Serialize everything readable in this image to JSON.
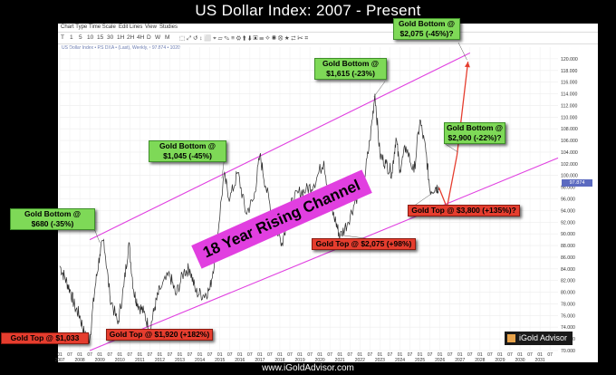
{
  "page": {
    "title": "US Dollar Index: 2007 - Present",
    "footer": "www.iGoldAdvisor.com",
    "logo_text": "iGold Advisor",
    "banner": "18 Year Rising Channel",
    "legend": "US Dollar Index • RS DXA • (Last), Weekly, • 97.874 • 1020"
  },
  "menubar": [
    "Chart Type",
    "Time Scale",
    "Edit",
    "Lines",
    "View",
    "Studies"
  ],
  "toolbar": [
    "T",
    "1",
    "5",
    "10",
    "15",
    "30",
    "1H",
    "2H",
    "4H",
    "D",
    "W",
    "M"
  ],
  "annotations": [
    {
      "text": "Gold Bottom @ $680 (-35%)",
      "line1": "Gold Bottom @",
      "line2": "$680 (-35%)",
      "type": "gold-bottom"
    },
    {
      "text": "Gold Top @ $1,033",
      "line1": "Gold Top @ $1,033",
      "line2": "",
      "type": "gold-top"
    },
    {
      "text": "Gold Top @ $1,920 (+182%)",
      "line1": "Gold Top @ $1,920 (+182%)",
      "line2": "",
      "type": "gold-top"
    },
    {
      "text": "Gold Bottom @ $1,045 (-45%)",
      "line1": "Gold Bottom @",
      "line2": "$1,045 (-45%)",
      "type": "gold-bottom"
    },
    {
      "text": "Gold Bottom @ $1,615 (-23%)",
      "line1": "Gold Bottom @",
      "line2": "$1,615 (-23%)",
      "type": "gold-bottom"
    },
    {
      "text": "Gold Top @ $2,075 (+98%)",
      "line1": "Gold Top @ $2,075 (+98%)",
      "line2": "",
      "type": "gold-top"
    },
    {
      "text": "Gold Bottom @ $2,075 (-45%)?",
      "line1": "Gold Bottom @",
      "line2": "$2,075 (-45%)?",
      "type": "gold-bottom"
    },
    {
      "text": "Gold Bottom @ $2,900 (-22%)?",
      "line1": "Gold Bottom @",
      "line2": "$2,900 (-22%)?",
      "type": "gold-bottom"
    },
    {
      "text": "Gold Top @ $3,800 (+135%)?",
      "line1": "Gold Top @ $3,800 (+135%)?",
      "line2": "",
      "type": "gold-top"
    }
  ],
  "colors": {
    "channel": "#e040e0",
    "price": "#2b2b2b",
    "projection": "#e53d2e",
    "green_box": "#7ed957",
    "red_box": "#e53d2e",
    "banner": "#e13fe0"
  },
  "chart_data": {
    "type": "line",
    "title": "US Dollar Index: 2007 - Present",
    "xlabel": "",
    "ylabel": "",
    "xlim": [
      2007.0,
      2031.9
    ],
    "ylim": [
      70,
      122
    ],
    "y_ticks": [
      70,
      72,
      74,
      76,
      78,
      80,
      82,
      84,
      86,
      88,
      90,
      92,
      94,
      96,
      98,
      100,
      102,
      104,
      106,
      108,
      110,
      112,
      114,
      116,
      118,
      120
    ],
    "y_tick_labels": [
      "70.000",
      "72.000",
      "74.000",
      "76.000",
      "78.000",
      "80.000",
      "82.000",
      "84.000",
      "86.000",
      "88.000",
      "90.000",
      "92.000",
      "94.000",
      "96.000",
      "98.000",
      "100.000",
      "102.000",
      "104.000",
      "106.000",
      "108.000",
      "110.000",
      "112.000",
      "114.000",
      "116.000",
      "118.000",
      "120.000"
    ],
    "last_value_label": "97.874",
    "x_ticks": [
      {
        "x": 2007.0,
        "top": "01",
        "bottom": "2007"
      },
      {
        "x": 2007.5,
        "top": "07",
        "bottom": ""
      },
      {
        "x": 2008.0,
        "top": "01",
        "bottom": "2008"
      },
      {
        "x": 2008.5,
        "top": "07",
        "bottom": ""
      },
      {
        "x": 2009.0,
        "top": "01",
        "bottom": "2009"
      },
      {
        "x": 2009.5,
        "top": "07",
        "bottom": ""
      },
      {
        "x": 2010.0,
        "top": "01",
        "bottom": "2010"
      },
      {
        "x": 2010.5,
        "top": "07",
        "bottom": ""
      },
      {
        "x": 2011.0,
        "top": "01",
        "bottom": "2011"
      },
      {
        "x": 2011.5,
        "top": "07",
        "bottom": ""
      },
      {
        "x": 2012.0,
        "top": "01",
        "bottom": "2012"
      },
      {
        "x": 2012.5,
        "top": "07",
        "bottom": ""
      },
      {
        "x": 2013.0,
        "top": "01",
        "bottom": "2013"
      },
      {
        "x": 2013.5,
        "top": "07",
        "bottom": ""
      },
      {
        "x": 2014.0,
        "top": "01",
        "bottom": "2014"
      },
      {
        "x": 2014.5,
        "top": "07",
        "bottom": ""
      },
      {
        "x": 2015.0,
        "top": "01",
        "bottom": "2015"
      },
      {
        "x": 2015.5,
        "top": "07",
        "bottom": ""
      },
      {
        "x": 2016.0,
        "top": "01",
        "bottom": "2016"
      },
      {
        "x": 2016.5,
        "top": "07",
        "bottom": ""
      },
      {
        "x": 2017.0,
        "top": "01",
        "bottom": "2017"
      },
      {
        "x": 2017.5,
        "top": "07",
        "bottom": ""
      },
      {
        "x": 2018.0,
        "top": "01",
        "bottom": "2018"
      },
      {
        "x": 2018.5,
        "top": "07",
        "bottom": ""
      },
      {
        "x": 2019.0,
        "top": "01",
        "bottom": "2019"
      },
      {
        "x": 2019.5,
        "top": "07",
        "bottom": ""
      },
      {
        "x": 2020.0,
        "top": "01",
        "bottom": "2020"
      },
      {
        "x": 2020.5,
        "top": "07",
        "bottom": ""
      },
      {
        "x": 2021.0,
        "top": "01",
        "bottom": "2021"
      },
      {
        "x": 2021.5,
        "top": "07",
        "bottom": ""
      },
      {
        "x": 2022.0,
        "top": "01",
        "bottom": "2022"
      },
      {
        "x": 2022.5,
        "top": "07",
        "bottom": ""
      },
      {
        "x": 2023.0,
        "top": "01",
        "bottom": "2023"
      },
      {
        "x": 2023.5,
        "top": "07",
        "bottom": ""
      },
      {
        "x": 2024.0,
        "top": "01",
        "bottom": "2024"
      },
      {
        "x": 2024.5,
        "top": "07",
        "bottom": ""
      },
      {
        "x": 2025.0,
        "top": "01",
        "bottom": "2025"
      },
      {
        "x": 2025.5,
        "top": "07",
        "bottom": ""
      },
      {
        "x": 2026.0,
        "top": "01",
        "bottom": "2026"
      },
      {
        "x": 2026.5,
        "top": "07",
        "bottom": ""
      },
      {
        "x": 2027.0,
        "top": "01",
        "bottom": "2027"
      },
      {
        "x": 2027.5,
        "top": "07",
        "bottom": ""
      },
      {
        "x": 2028.0,
        "top": "01",
        "bottom": "2028"
      },
      {
        "x": 2028.5,
        "top": "07",
        "bottom": ""
      },
      {
        "x": 2029.0,
        "top": "01",
        "bottom": "2029"
      },
      {
        "x": 2029.5,
        "top": "07",
        "bottom": ""
      },
      {
        "x": 2030.0,
        "top": "01",
        "bottom": "2030"
      },
      {
        "x": 2030.5,
        "top": "07",
        "bottom": ""
      },
      {
        "x": 2031.0,
        "top": "01",
        "bottom": "2031"
      },
      {
        "x": 2031.5,
        "top": "07",
        "bottom": ""
      }
    ],
    "series": [
      {
        "name": "US Dollar Index",
        "points": [
          [
            2007.0,
            84.5
          ],
          [
            2007.25,
            82.5
          ],
          [
            2007.5,
            80.5
          ],
          [
            2007.75,
            77.5
          ],
          [
            2008.0,
            76.0
          ],
          [
            2008.25,
            72.5
          ],
          [
            2008.5,
            72.0
          ],
          [
            2008.75,
            80.5
          ],
          [
            2009.0,
            86.5
          ],
          [
            2009.2,
            89.0
          ],
          [
            2009.5,
            79.5
          ],
          [
            2009.9,
            74.5
          ],
          [
            2010.2,
            81.0
          ],
          [
            2010.45,
            88.5
          ],
          [
            2010.7,
            80.0
          ],
          [
            2010.9,
            78.0
          ],
          [
            2011.2,
            76.5
          ],
          [
            2011.5,
            73.5
          ],
          [
            2011.75,
            77.5
          ],
          [
            2012.0,
            80.5
          ],
          [
            2012.5,
            83.0
          ],
          [
            2012.8,
            79.5
          ],
          [
            2013.2,
            83.5
          ],
          [
            2013.5,
            84.0
          ],
          [
            2013.8,
            80.0
          ],
          [
            2014.2,
            79.5
          ],
          [
            2014.5,
            80.5
          ],
          [
            2014.8,
            87.0
          ],
          [
            2015.2,
            100.0
          ],
          [
            2015.5,
            96.0
          ],
          [
            2015.9,
            100.5
          ],
          [
            2016.3,
            93.5
          ],
          [
            2016.7,
            96.0
          ],
          [
            2017.0,
            103.5
          ],
          [
            2017.3,
            98.0
          ],
          [
            2017.7,
            92.0
          ],
          [
            2018.1,
            88.5
          ],
          [
            2018.5,
            94.5
          ],
          [
            2018.9,
            97.0
          ],
          [
            2019.3,
            97.5
          ],
          [
            2019.7,
            98.5
          ],
          [
            2020.2,
            102.5
          ],
          [
            2020.5,
            95.0
          ],
          [
            2020.8,
            92.0
          ],
          [
            2021.0,
            89.5
          ],
          [
            2021.4,
            92.0
          ],
          [
            2021.8,
            96.0
          ],
          [
            2022.2,
            99.0
          ],
          [
            2022.5,
            106.0
          ],
          [
            2022.75,
            114.0
          ],
          [
            2023.0,
            103.5
          ],
          [
            2023.3,
            102.0
          ],
          [
            2023.6,
            100.5
          ],
          [
            2023.8,
            106.5
          ],
          [
            2024.0,
            101.0
          ],
          [
            2024.3,
            105.0
          ],
          [
            2024.7,
            100.5
          ],
          [
            2025.0,
            109.5
          ],
          [
            2025.3,
            104.0
          ],
          [
            2025.5,
            97.5
          ],
          [
            2025.8,
            98.0
          ],
          [
            2025.95,
            97.9
          ]
        ]
      }
    ],
    "channel_lines": [
      {
        "name": "upper",
        "points": [
          [
            2008.5,
            89.0
          ],
          [
            2027.5,
            121.0
          ]
        ]
      },
      {
        "name": "lower",
        "points": [
          [
            2008.5,
            70.0
          ],
          [
            2031.9,
            103.0
          ]
        ]
      }
    ],
    "projection": [
      [
        2025.95,
        97.9
      ],
      [
        2026.35,
        94.5
      ],
      [
        2026.85,
        103.5
      ],
      [
        2027.4,
        119.5
      ]
    ]
  }
}
